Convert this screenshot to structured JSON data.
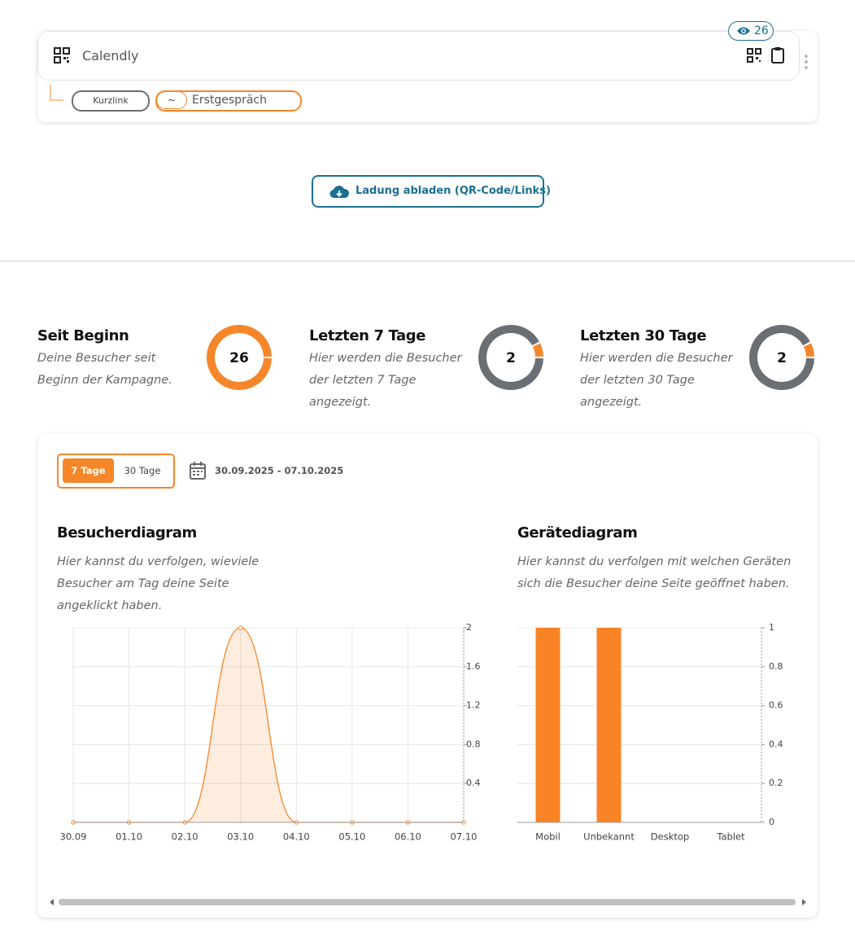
{
  "link_card": {
    "title": "Calendly",
    "views": 26,
    "short_link_label": "Kurzlink",
    "prefix": "~",
    "slug": "Erstgespräch"
  },
  "download_button": "Ladung abladen (QR-Code/Links)",
  "stats": [
    {
      "title": "Seit Beginn",
      "description": "Deine Besucher seit Beginn der Kampagne.",
      "value": 26
    },
    {
      "title": "Letzten 7 Tage",
      "description": "Hier werden die Besucher der letzten 7 Tage angezeigt.",
      "value": 2
    },
    {
      "title": "Letzten 30 Tage",
      "description": "Hier werden die Besucher der letzten 30 Tage angezeigt.",
      "value": 2
    }
  ],
  "tabs": [
    "7 Tage",
    "30 Tage"
  ],
  "date_range": "30.09.2025 - 07.10.2025",
  "chart_data": [
    {
      "type": "area",
      "title": "Besucherdiagram",
      "subtitle": "Hier kannst du verfolgen, wieviele Besucher am Tag deine Seite angeklickt haben.",
      "categories": [
        "30.09",
        "01.10",
        "02.10",
        "03.10",
        "04.10",
        "05.10",
        "06.10",
        "07.10"
      ],
      "values": [
        0,
        0,
        0,
        2,
        0,
        0,
        0,
        0
      ],
      "color": "#f5862a",
      "ylim": [
        0,
        2
      ],
      "yticks": [
        0.4,
        0.8,
        1.2,
        1.6,
        2
      ],
      "grid": true
    },
    {
      "type": "bar",
      "title": "Gerätediagram",
      "subtitle": "Hier kannst du verfolgen mit welchen Geräten sich die Besucher deine Seite geöffnet haben.",
      "categories": [
        "Mobil",
        "Unbekannt",
        "Desktop",
        "Tablet"
      ],
      "values": [
        1,
        1,
        0,
        0
      ],
      "color": "#f98426",
      "ylim": [
        0,
        1
      ],
      "yticks": [
        0,
        0.2,
        0.4,
        0.6,
        0.8,
        1
      ],
      "grid": true
    }
  ]
}
